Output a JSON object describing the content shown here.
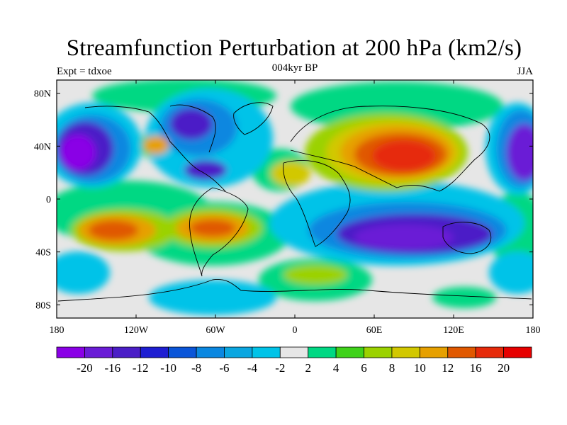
{
  "title": "Streamfunction Perturbation at 200 hPa (km2/s)",
  "left_label": "Expt = tdxoe",
  "center_label": "004kyr BP",
  "right_label": "JJA",
  "lon_ticks": [
    "180",
    "120W",
    "60W",
    "0",
    "60E",
    "120E",
    "180"
  ],
  "lat_ticks": [
    "80N",
    "40N",
    "0",
    "40S",
    "80S"
  ],
  "colorbar": {
    "labels": [
      "-20",
      "-16",
      "-12",
      "-10",
      "-8",
      "-6",
      "-4",
      "-2",
      "2",
      "4",
      "6",
      "8",
      "10",
      "12",
      "16",
      "20"
    ],
    "colors": [
      "#8a00e6",
      "#6a1cd6",
      "#4b1ec7",
      "#1e1ed2",
      "#0a55d8",
      "#0a87e0",
      "#0aa6e0",
      "#00c3e8",
      "#e6e6e6",
      "#00d883",
      "#3fd21a",
      "#9bd200",
      "#d2c800",
      "#e6a000",
      "#e05800",
      "#e62a0a",
      "#e60000"
    ]
  }
}
